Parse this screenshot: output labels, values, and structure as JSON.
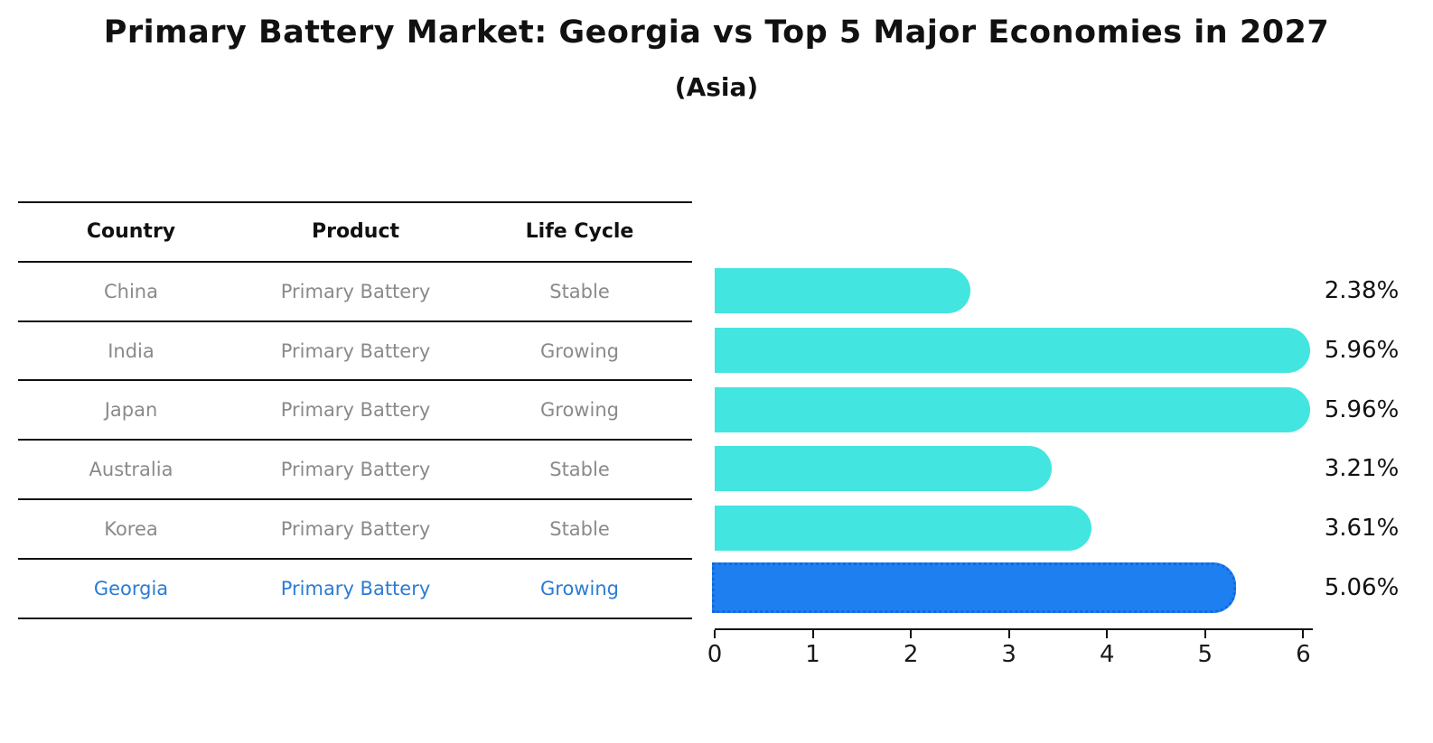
{
  "title": "Primary Battery Market: Georgia vs Top 5 Major Economies in 2027",
  "subtitle": "(Asia)",
  "table": {
    "headers": [
      "Country",
      "Product",
      "Life Cycle"
    ],
    "rows": [
      {
        "country": "China",
        "product": "Primary Battery",
        "life_cycle": "Stable"
      },
      {
        "country": "India",
        "product": "Primary Battery",
        "life_cycle": "Growing"
      },
      {
        "country": "Japan",
        "product": "Primary Battery",
        "life_cycle": "Growing"
      },
      {
        "country": "Australia",
        "product": "Primary Battery",
        "life_cycle": "Stable"
      },
      {
        "country": "Korea",
        "product": "Primary Battery",
        "life_cycle": "Stable"
      },
      {
        "country": "Georgia",
        "product": "Primary Battery",
        "life_cycle": "Growing"
      }
    ],
    "highlight_row_index": 5
  },
  "chart_data": {
    "type": "bar",
    "orientation": "horizontal",
    "title": "Primary Battery Market: Georgia vs Top 5 Major Economies in 2027",
    "subtitle": "(Asia)",
    "categories": [
      "China",
      "India",
      "Japan",
      "Australia",
      "Korea",
      "Georgia"
    ],
    "values": [
      2.38,
      5.96,
      5.96,
      3.21,
      3.61,
      5.06
    ],
    "value_labels": [
      "2.38%",
      "5.96%",
      "5.96%",
      "3.21%",
      "3.61%",
      "5.06%"
    ],
    "xticks": [
      0,
      1,
      2,
      3,
      4,
      5,
      6
    ],
    "xtick_labels": [
      "0",
      "1",
      "2",
      "3",
      "4",
      "5",
      "6"
    ],
    "xlim": [
      0,
      6.07
    ],
    "grid": false,
    "legend": false,
    "highlight_index": 5,
    "colors": {
      "bar": "#42E5DF",
      "highlight_bar": "#1E80F0",
      "highlight_border": "#1568DE",
      "highlight_text": "#2A7CD5",
      "row_text": "#8A8A8A",
      "axis_text": "#111111"
    }
  }
}
